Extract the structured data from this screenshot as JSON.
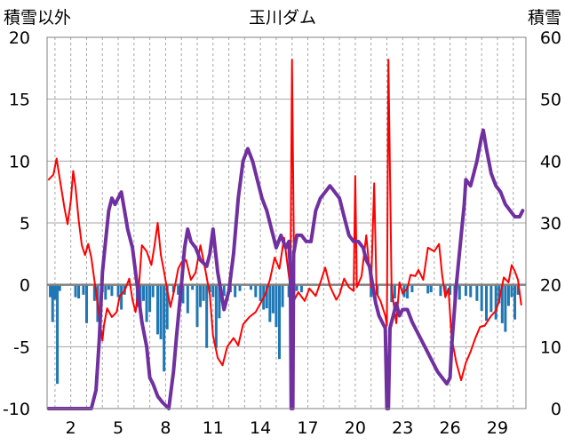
{
  "chart_data": {
    "type": "line",
    "title": "玉川ダム",
    "left_axis_label": "積雪以外",
    "right_axis_label": "積雪",
    "left_ylim": [
      -10,
      20
    ],
    "left_yticks": [
      "20",
      "15",
      "10",
      "5",
      "0",
      "-5",
      "-10"
    ],
    "right_ylim": [
      0,
      60
    ],
    "right_yticks": [
      "60",
      "50",
      "40",
      "30",
      "20",
      "10",
      "0"
    ],
    "x_range": [
      0.5,
      30.8
    ],
    "x_ticks": [
      "2",
      "5",
      "8",
      "11",
      "14",
      "17",
      "20",
      "23",
      "26",
      "29"
    ],
    "grid": true,
    "colors": {
      "temperature": "#ff0000",
      "precipitation": "#1f77b4",
      "snow_depth": "#7030a0",
      "zero_line": "#808080",
      "grid": "#a6a6a6"
    },
    "series": [
      {
        "axis": "left",
        "style": "line",
        "color": "#ff0000",
        "points": [
          [
            0.6,
            8.5
          ],
          [
            0.9,
            8.9
          ],
          [
            1.1,
            10.2
          ],
          [
            1.3,
            8.6
          ],
          [
            1.6,
            6.2
          ],
          [
            1.8,
            4.9
          ],
          [
            2.0,
            6.8
          ],
          [
            2.15,
            9.2
          ],
          [
            2.3,
            7.9
          ],
          [
            2.5,
            5.2
          ],
          [
            2.7,
            3.2
          ],
          [
            2.9,
            2.4
          ],
          [
            3.1,
            3.3
          ],
          [
            3.3,
            2.2
          ],
          [
            3.6,
            -0.6
          ],
          [
            3.8,
            -2.6
          ],
          [
            4.0,
            -4.5
          ],
          [
            4.1,
            -3.3
          ],
          [
            4.3,
            -1.9
          ],
          [
            4.6,
            -2.6
          ],
          [
            4.9,
            -2.2
          ],
          [
            5.1,
            -0.9
          ],
          [
            5.4,
            -0.5
          ],
          [
            5.7,
            0.5
          ],
          [
            5.9,
            -1.2
          ],
          [
            6.1,
            -2.2
          ],
          [
            6.3,
            -0.3
          ],
          [
            6.5,
            3.2
          ],
          [
            6.8,
            2.7
          ],
          [
            7.1,
            1.6
          ],
          [
            7.3,
            3.2
          ],
          [
            7.5,
            5.0
          ],
          [
            7.7,
            2.4
          ],
          [
            7.9,
            1.1
          ],
          [
            8.1,
            -0.4
          ],
          [
            8.3,
            -1.8
          ],
          [
            8.5,
            -0.7
          ],
          [
            8.8,
            1.3
          ],
          [
            9.0,
            1.8
          ],
          [
            9.3,
            2.0
          ],
          [
            9.6,
            0.4
          ],
          [
            9.9,
            1.0
          ],
          [
            10.2,
            3.2
          ],
          [
            10.5,
            1.3
          ],
          [
            10.8,
            -0.8
          ],
          [
            11.0,
            -4.1
          ],
          [
            11.3,
            -5.9
          ],
          [
            11.6,
            -6.5
          ],
          [
            11.9,
            -5.0
          ],
          [
            12.3,
            -4.3
          ],
          [
            12.6,
            -4.9
          ],
          [
            12.9,
            -3.2
          ],
          [
            13.3,
            -2.6
          ],
          [
            13.7,
            -2.2
          ],
          [
            14.0,
            -1.5
          ],
          [
            14.3,
            -0.8
          ],
          [
            14.6,
            0.4
          ],
          [
            14.9,
            2.2
          ],
          [
            15.2,
            1.3
          ],
          [
            15.5,
            3.8
          ],
          [
            15.8,
            0.7
          ],
          [
            15.9,
            -0.2
          ],
          [
            16.0,
            18.2
          ],
          [
            16.15,
            -1.2
          ],
          [
            16.4,
            -0.6
          ],
          [
            16.8,
            -1.3
          ],
          [
            17.1,
            -0.3
          ],
          [
            17.5,
            -0.9
          ],
          [
            17.8,
            0.2
          ],
          [
            18.1,
            1.4
          ],
          [
            18.4,
            -0.1
          ],
          [
            18.8,
            -1.2
          ],
          [
            19.0,
            -0.8
          ],
          [
            19.3,
            0.5
          ],
          [
            19.6,
            -0.2
          ],
          [
            19.9,
            -0.5
          ],
          [
            20.0,
            8.8
          ],
          [
            20.1,
            -0.2
          ],
          [
            20.4,
            0.7
          ],
          [
            20.7,
            4.0
          ],
          [
            21.0,
            -0.2
          ],
          [
            21.2,
            8.2
          ],
          [
            21.35,
            -0.7
          ],
          [
            21.6,
            -1.3
          ],
          [
            21.9,
            -2.5
          ],
          [
            22.0,
            -3.3
          ],
          [
            22.1,
            18.2
          ],
          [
            22.3,
            -0.3
          ],
          [
            22.6,
            -3.1
          ],
          [
            22.8,
            0.2
          ],
          [
            23.0,
            -0.7
          ],
          [
            23.3,
            -0.3
          ],
          [
            23.5,
            0.8
          ],
          [
            23.8,
            0.7
          ],
          [
            24.0,
            1.2
          ],
          [
            24.3,
            0.4
          ],
          [
            24.6,
            3.0
          ],
          [
            25.0,
            2.7
          ],
          [
            25.3,
            3.3
          ],
          [
            25.5,
            0.8
          ],
          [
            25.7,
            -1.0
          ],
          [
            25.9,
            -0.3
          ],
          [
            26.1,
            -4.3
          ],
          [
            26.4,
            -6.3
          ],
          [
            26.7,
            -7.7
          ],
          [
            27.0,
            -6.3
          ],
          [
            27.3,
            -5.4
          ],
          [
            27.6,
            -4.3
          ],
          [
            27.9,
            -3.4
          ],
          [
            28.2,
            -3.3
          ],
          [
            28.6,
            -2.5
          ],
          [
            28.9,
            -2.1
          ],
          [
            29.1,
            -1.3
          ],
          [
            29.4,
            0.6
          ],
          [
            29.7,
            0.2
          ],
          [
            29.9,
            1.6
          ],
          [
            30.1,
            1.1
          ],
          [
            30.3,
            0.4
          ],
          [
            30.5,
            -1.6
          ]
        ]
      },
      {
        "axis": "right",
        "style": "line",
        "color": "#7030a0",
        "points": [
          [
            0.6,
            0
          ],
          [
            1.5,
            0
          ],
          [
            2.5,
            0
          ],
          [
            3.3,
            0
          ],
          [
            3.6,
            3
          ],
          [
            3.8,
            11
          ],
          [
            4.0,
            22
          ],
          [
            4.2,
            27
          ],
          [
            4.4,
            32
          ],
          [
            4.6,
            34
          ],
          [
            4.8,
            33
          ],
          [
            5.0,
            34
          ],
          [
            5.2,
            35
          ],
          [
            5.4,
            32
          ],
          [
            5.6,
            29
          ],
          [
            5.9,
            26
          ],
          [
            6.2,
            20
          ],
          [
            6.5,
            14
          ],
          [
            6.8,
            10
          ],
          [
            7.0,
            5
          ],
          [
            7.2,
            4
          ],
          [
            7.5,
            2
          ],
          [
            7.8,
            1
          ],
          [
            8.2,
            0
          ],
          [
            8.5,
            6
          ],
          [
            8.7,
            12
          ],
          [
            9.0,
            20
          ],
          [
            9.2,
            26
          ],
          [
            9.4,
            29
          ],
          [
            9.6,
            27
          ],
          [
            9.9,
            26
          ],
          [
            10.2,
            24
          ],
          [
            10.6,
            23
          ],
          [
            10.8,
            25
          ],
          [
            11.0,
            29
          ],
          [
            11.3,
            22
          ],
          [
            11.5,
            19
          ],
          [
            11.7,
            16
          ],
          [
            12.0,
            19
          ],
          [
            12.3,
            25
          ],
          [
            12.6,
            34
          ],
          [
            12.9,
            40
          ],
          [
            13.2,
            42
          ],
          [
            13.5,
            40
          ],
          [
            13.8,
            37
          ],
          [
            14.1,
            34
          ],
          [
            14.4,
            32
          ],
          [
            14.7,
            29
          ],
          [
            15.0,
            26
          ],
          [
            15.3,
            28
          ],
          [
            15.6,
            26
          ],
          [
            15.8,
            27
          ],
          [
            15.9,
            22
          ],
          [
            15.95,
            0
          ],
          [
            16.05,
            0
          ],
          [
            16.1,
            25
          ],
          [
            16.3,
            28
          ],
          [
            16.6,
            28
          ],
          [
            16.9,
            27
          ],
          [
            17.2,
            27
          ],
          [
            17.5,
            32
          ],
          [
            17.8,
            34
          ],
          [
            18.1,
            35
          ],
          [
            18.4,
            36
          ],
          [
            18.7,
            35
          ],
          [
            19.0,
            34
          ],
          [
            19.3,
            31
          ],
          [
            19.6,
            28
          ],
          [
            19.9,
            27
          ],
          [
            20.2,
            27
          ],
          [
            20.5,
            26
          ],
          [
            20.7,
            24
          ],
          [
            20.9,
            23
          ],
          [
            21.1,
            20
          ],
          [
            21.3,
            17
          ],
          [
            21.5,
            15
          ],
          [
            21.7,
            14
          ],
          [
            21.9,
            13
          ],
          [
            22.0,
            0
          ],
          [
            22.1,
            0
          ],
          [
            22.2,
            13
          ],
          [
            22.4,
            15
          ],
          [
            22.6,
            17
          ],
          [
            22.8,
            15
          ],
          [
            23.0,
            16
          ],
          [
            23.3,
            16
          ],
          [
            23.6,
            14
          ],
          [
            24.0,
            12
          ],
          [
            24.4,
            10
          ],
          [
            24.8,
            8
          ],
          [
            25.2,
            6
          ],
          [
            25.5,
            5
          ],
          [
            25.8,
            4
          ],
          [
            26.0,
            5
          ],
          [
            26.1,
            10
          ],
          [
            26.4,
            20
          ],
          [
            26.7,
            28
          ],
          [
            26.9,
            33
          ],
          [
            27.0,
            37
          ],
          [
            27.3,
            36
          ],
          [
            27.5,
            38
          ],
          [
            27.7,
            40
          ],
          [
            28.0,
            44
          ],
          [
            28.1,
            45
          ],
          [
            28.3,
            42
          ],
          [
            28.6,
            38
          ],
          [
            28.9,
            36
          ],
          [
            29.2,
            35
          ],
          [
            29.5,
            33
          ],
          [
            29.8,
            32
          ],
          [
            30.1,
            31
          ],
          [
            30.4,
            31
          ],
          [
            30.6,
            32
          ]
        ]
      },
      {
        "axis": "left",
        "style": "bar",
        "color": "#1f77b4",
        "points": [
          [
            0.7,
            -1.0
          ],
          [
            0.85,
            -3.0
          ],
          [
            1.0,
            -1.2
          ],
          [
            1.15,
            -8.0
          ],
          [
            1.3,
            -0.5
          ],
          [
            2.3,
            -1.0
          ],
          [
            2.5,
            -1.1
          ],
          [
            2.8,
            -0.8
          ],
          [
            3.0,
            -3.1
          ],
          [
            3.5,
            -1.3
          ],
          [
            3.7,
            -3.0
          ],
          [
            4.0,
            -0.6
          ],
          [
            4.2,
            -1.2
          ],
          [
            4.4,
            -0.4
          ],
          [
            4.6,
            -0.9
          ],
          [
            5.0,
            -1.0
          ],
          [
            5.2,
            -2.0
          ],
          [
            5.4,
            -0.8
          ],
          [
            6.2,
            -1.8
          ],
          [
            6.4,
            -2.3
          ],
          [
            6.6,
            -1.3
          ],
          [
            6.8,
            -3.0
          ],
          [
            7.0,
            -2.2
          ],
          [
            7.2,
            -1.0
          ],
          [
            7.5,
            -4.0
          ],
          [
            7.7,
            -4.4
          ],
          [
            7.9,
            -7.0
          ],
          [
            8.1,
            -3.6
          ],
          [
            8.5,
            -0.6
          ],
          [
            8.8,
            -0.8
          ],
          [
            9.1,
            -1.5
          ],
          [
            9.4,
            -2.3
          ],
          [
            9.7,
            -0.4
          ],
          [
            10.0,
            -3.4
          ],
          [
            10.2,
            -1.8
          ],
          [
            10.4,
            -1.3
          ],
          [
            10.6,
            -5.1
          ],
          [
            10.8,
            -0.6
          ],
          [
            11.0,
            -1.0
          ],
          [
            11.2,
            -5.1
          ],
          [
            11.4,
            -2.7
          ],
          [
            11.7,
            -0.9
          ],
          [
            12.1,
            -0.6
          ],
          [
            12.4,
            -1.0
          ],
          [
            12.7,
            -0.5
          ],
          [
            13.4,
            -0.4
          ],
          [
            13.7,
            -1.0
          ],
          [
            14.0,
            -1.3
          ],
          [
            14.2,
            -2.0
          ],
          [
            14.4,
            -1.9
          ],
          [
            14.6,
            -3.0
          ],
          [
            14.8,
            -2.3
          ],
          [
            15.0,
            -3.4
          ],
          [
            15.2,
            -6.0
          ],
          [
            15.4,
            -1.8
          ],
          [
            15.8,
            -1.0
          ],
          [
            16.3,
            -0.5
          ],
          [
            16.6,
            -0.6
          ],
          [
            21.0,
            -1.0
          ],
          [
            21.4,
            -0.8
          ],
          [
            22.3,
            -1.4
          ],
          [
            22.5,
            -1.1
          ],
          [
            23.1,
            -1.0
          ],
          [
            23.3,
            -1.1
          ],
          [
            23.6,
            -0.6
          ],
          [
            24.6,
            -0.7
          ],
          [
            24.8,
            -0.6
          ],
          [
            25.4,
            -0.9
          ],
          [
            25.7,
            -0.7
          ],
          [
            26.0,
            -0.8
          ],
          [
            26.3,
            -1.3
          ],
          [
            26.6,
            -1.2
          ],
          [
            27.0,
            -0.9
          ],
          [
            27.3,
            -1.0
          ],
          [
            27.7,
            -1.3
          ],
          [
            28.0,
            -2.1
          ],
          [
            28.3,
            -2.9
          ],
          [
            28.6,
            -2.2
          ],
          [
            28.9,
            -2.8
          ],
          [
            29.1,
            -1.5
          ],
          [
            29.3,
            -3.1
          ],
          [
            29.5,
            -3.8
          ],
          [
            29.7,
            -1.7
          ],
          [
            29.9,
            -1.0
          ],
          [
            30.1,
            -2.8
          ],
          [
            30.3,
            -0.8
          ]
        ]
      }
    ]
  }
}
